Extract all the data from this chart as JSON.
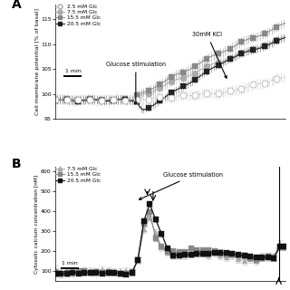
{
  "panel_A": {
    "ylabel": "Cell membrane potential [% of basal]",
    "ylim": [
      95,
      118
    ],
    "yticks": [
      95,
      100,
      105,
      110,
      115
    ],
    "glucose_label": "Glucose stimulation",
    "kcl_label": "30mM KCl"
  },
  "panel_B": {
    "ylabel": "Cytosolic calcium concentration [nM]",
    "ylim": [
      50,
      620
    ],
    "yticks": [
      100,
      200,
      300,
      400,
      500,
      600
    ],
    "glucose_label": "Glucose stimulation"
  }
}
